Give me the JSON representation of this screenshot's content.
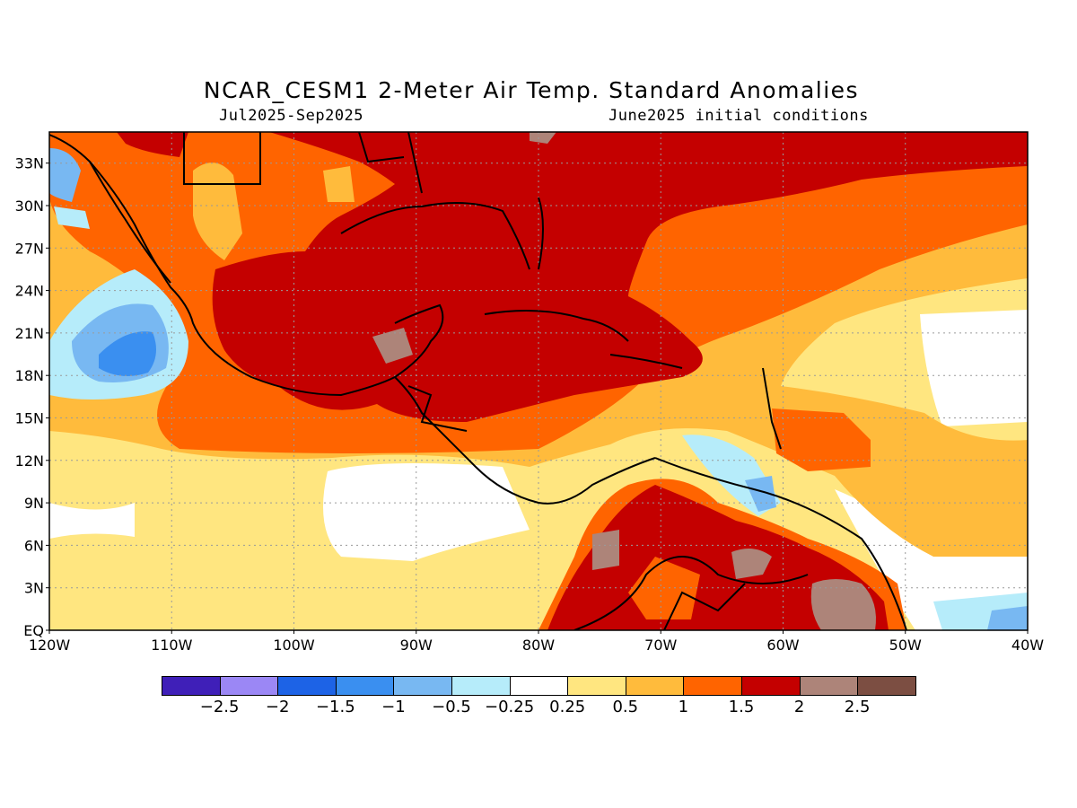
{
  "title": "NCAR_CESM1 2-Meter Air Temp. Standard Anomalies",
  "period": "Jul2025-Sep2025",
  "init": "June2025 initial conditions",
  "lat_labels": [
    "33N",
    "30N",
    "27N",
    "24N",
    "21N",
    "18N",
    "15N",
    "12N",
    "9N",
    "6N",
    "3N",
    "EQ"
  ],
  "lon_labels": [
    "120W",
    "110W",
    "100W",
    "90W",
    "80W",
    "70W",
    "60W",
    "50W",
    "40W"
  ],
  "colorbar": {
    "colors": [
      "#3f1fb8",
      "#9b87f5",
      "#1d63e6",
      "#3a8ff0",
      "#78b8f2",
      "#b6ecfa",
      "#ffffff",
      "#ffe680",
      "#ffbb3c",
      "#ff6400",
      "#c40000",
      "#ad8479",
      "#7c4e42"
    ],
    "labels": [
      "-2.5",
      "-2",
      "-1.5",
      "-1",
      "-0.5",
      "-0.25",
      "0.25",
      "0.5",
      "1",
      "1.5",
      "2",
      "2.5"
    ]
  },
  "colors": {
    "background": "#fff2b8",
    "coast": "#000000",
    "grid": "#9a9a9a"
  }
}
